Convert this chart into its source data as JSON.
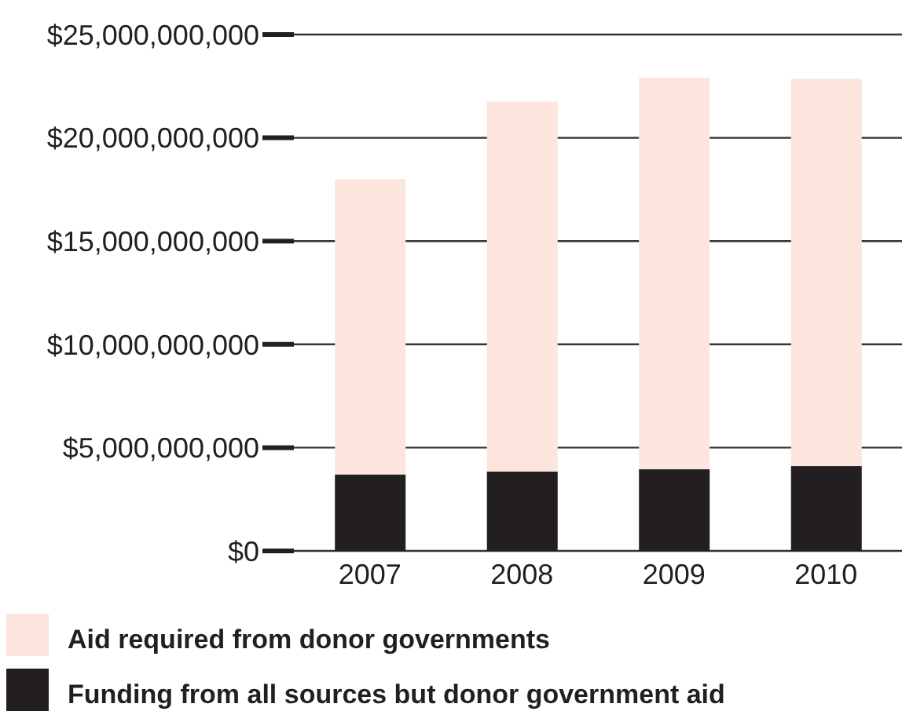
{
  "chart_data": {
    "type": "bar",
    "stacked": true,
    "categories": [
      "2007",
      "2008",
      "2009",
      "2010"
    ],
    "series": [
      {
        "name": "Funding from all sources but donor government aid",
        "color": "#231f20",
        "values": [
          3700000000,
          3850000000,
          3950000000,
          4100000000
        ]
      },
      {
        "name": "Aid required from donor governments",
        "color": "#fbe5dc",
        "values": [
          14300000000,
          17900000000,
          18950000000,
          18750000000
        ]
      }
    ],
    "ylim": [
      0,
      25000000000
    ],
    "yticks": [
      {
        "value": 0,
        "label": "$0"
      },
      {
        "value": 5000000000,
        "label": "$5,000,000,000"
      },
      {
        "value": 10000000000,
        "label": "$10,000,000,000"
      },
      {
        "value": 15000000000,
        "label": "$15,000,000,000"
      },
      {
        "value": 20000000000,
        "label": "$20,000,000,000"
      },
      {
        "value": 25000000000,
        "label": "$25,000,000,000"
      }
    ],
    "grid": "y",
    "legend": "bottom"
  }
}
